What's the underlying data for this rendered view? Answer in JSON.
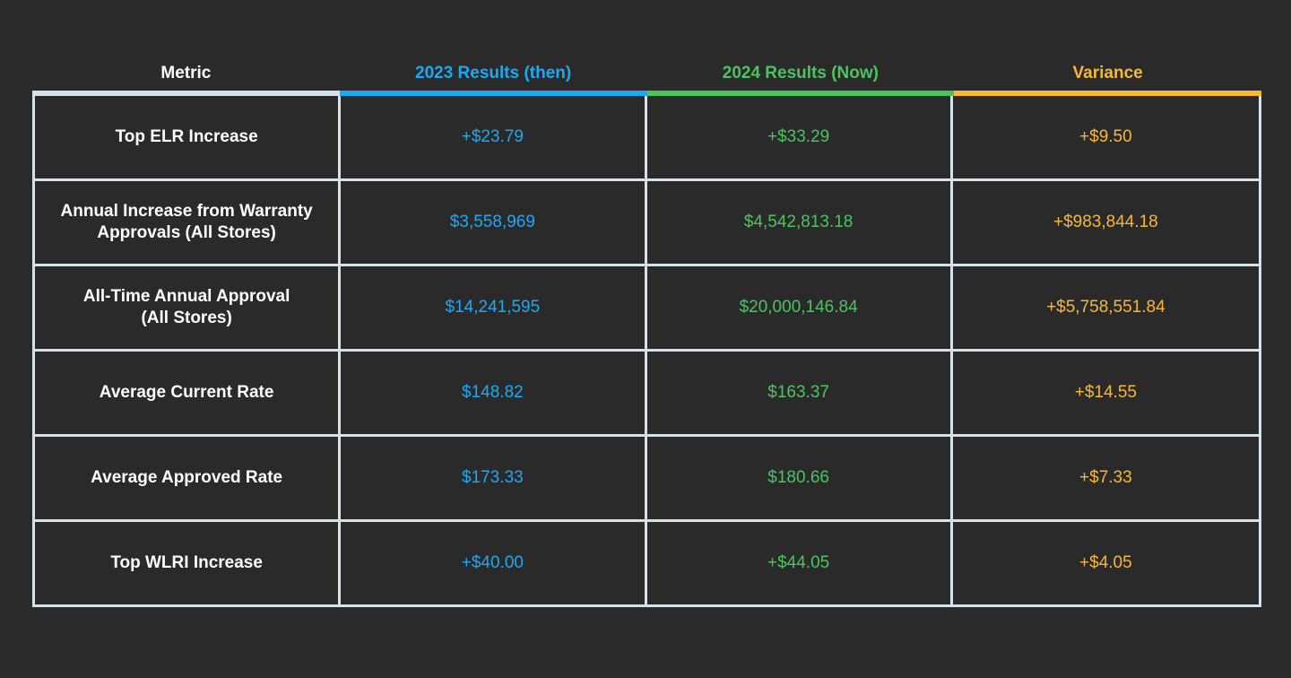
{
  "colors": {
    "background": "#2a2a2a",
    "grid": "#d6e2ea",
    "metric": "#ffffff",
    "then": "#1aaaf5",
    "now": "#4cc45e",
    "variance": "#f8b830"
  },
  "chart_data": {
    "type": "table",
    "columns": [
      "Metric",
      "2023 Results (then)",
      "2024 Results (Now)",
      "Variance"
    ],
    "rows": [
      {
        "metric": "Top ELR Increase",
        "then": "+$23.79",
        "now": "+$33.29",
        "variance": "+$9.50"
      },
      {
        "metric": "Annual Increase from Warranty\nApprovals (All Stores)",
        "then": "$3,558,969",
        "now": "$4,542,813.18",
        "variance": "+$983,844.18"
      },
      {
        "metric": "All-Time Annual Approval\n(All Stores)",
        "then": "$14,241,595",
        "now": "$20,000,146.84",
        "variance": "+$5,758,551.84"
      },
      {
        "metric": "Average Current Rate",
        "then": "$148.82",
        "now": "$163.37",
        "variance": "+$14.55"
      },
      {
        "metric": "Average Approved Rate",
        "then": "$173.33",
        "now": "$180.66",
        "variance": "+$7.33"
      },
      {
        "metric": "Top WLRI Increase",
        "then": "+$40.00",
        "now": "+$44.05",
        "variance": "+$4.05"
      }
    ]
  }
}
